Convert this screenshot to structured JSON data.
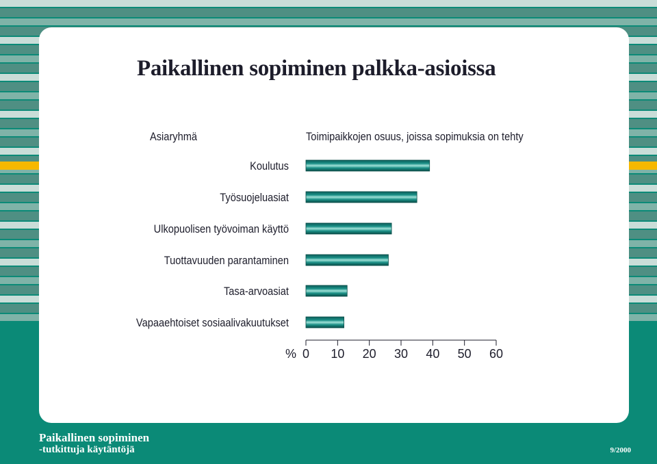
{
  "page": {
    "title": "Paikallinen sopiminen palkka-asioissa",
    "footer_line1": "Paikallinen sopiminen",
    "footer_line2": "-tutkittuja käytäntöjä",
    "issue": "9/2000"
  },
  "colors": {
    "background_teal": "#0b8a77",
    "stripe_dark": "#4f8f83",
    "stripe_mid": "#7fb3a8",
    "stripe_light": "#c9ddd8",
    "accent_yellow": "#f6b800",
    "bar_fill": "#1a8f86",
    "text": "#1d1d2b"
  },
  "chart_data": {
    "type": "bar",
    "orientation": "horizontal",
    "category_header": "Asiaryhmä",
    "value_header": "Toimipaikkojen osuus, joissa sopimuksia on tehty",
    "unit_label": "%",
    "categories": [
      "Koulutus",
      "Työsuojeluasiat",
      "Ulkopuolisen työvoiman käyttö",
      "Tuottavuuden parantaminen",
      "Tasa-arvoasiat",
      "Vapaaehtoiset sosiaalivakuutukset"
    ],
    "values": [
      39,
      35,
      27,
      26,
      13,
      12
    ],
    "xlim": [
      0,
      60
    ],
    "ticks": [
      "0",
      "10",
      "20",
      "30",
      "40",
      "50",
      "60"
    ],
    "tick_values": [
      0,
      10,
      20,
      30,
      40,
      50,
      60
    ],
    "grid": false,
    "legend": "none"
  }
}
